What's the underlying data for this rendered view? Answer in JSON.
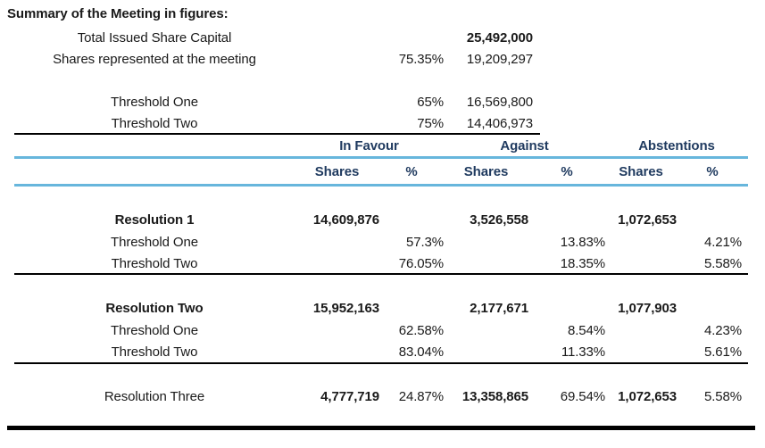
{
  "title": "Summary of the Meeting in figures:",
  "colors": {
    "header_navy": "#1f3a5f",
    "rule_blue": "#67b6dc",
    "rule_black": "#000000",
    "text": "#1a1a1a"
  },
  "summary": {
    "rows": [
      {
        "label": "Total Issued Share Capital",
        "pct": "",
        "value": "25,492,000"
      },
      {
        "label": "Shares represented at the meeting",
        "pct": "75.35%",
        "value": "19,209,297"
      }
    ],
    "thresholds": [
      {
        "label": "Threshold One",
        "pct": "65%",
        "value": "16,569,800"
      },
      {
        "label": "Threshold Two",
        "pct": "75%",
        "value": "14,406,973"
      }
    ]
  },
  "table": {
    "group_headers": {
      "favour": "In Favour",
      "against": "Against",
      "abstentions": "Abstentions"
    },
    "subheaders": {
      "shares": "Shares",
      "pct": "%"
    },
    "resolutions": [
      {
        "name": "Resolution 1",
        "shares": {
          "favour": "14,609,876",
          "against": "3,526,558",
          "abstain": "1,072,653"
        },
        "thresholds": [
          {
            "label": "Threshold One",
            "favour": "57.3%",
            "against": "13.83%",
            "abstain": "4.21%"
          },
          {
            "label": "Threshold Two",
            "favour": "76.05%",
            "against": "18.35%",
            "abstain": "5.58%"
          }
        ]
      },
      {
        "name": "Resolution Two",
        "shares": {
          "favour": "15,952,163",
          "against": "2,177,671",
          "abstain": "1,077,903"
        },
        "thresholds": [
          {
            "label": "Threshold One",
            "favour": "62.58%",
            "against": "8.54%",
            "abstain": "4.23%"
          },
          {
            "label": "Threshold Two",
            "favour": "83.04%",
            "against": "11.33%",
            "abstain": "5.61%"
          }
        ]
      }
    ],
    "resolution_three": {
      "name": "Resolution Three",
      "favour_shares": "4,777,719",
      "favour_pct": "24.87%",
      "against_shares": "13,358,865",
      "against_pct": "69.54%",
      "abstain_shares": "1,072,653",
      "abstain_pct": "5.58%"
    }
  }
}
